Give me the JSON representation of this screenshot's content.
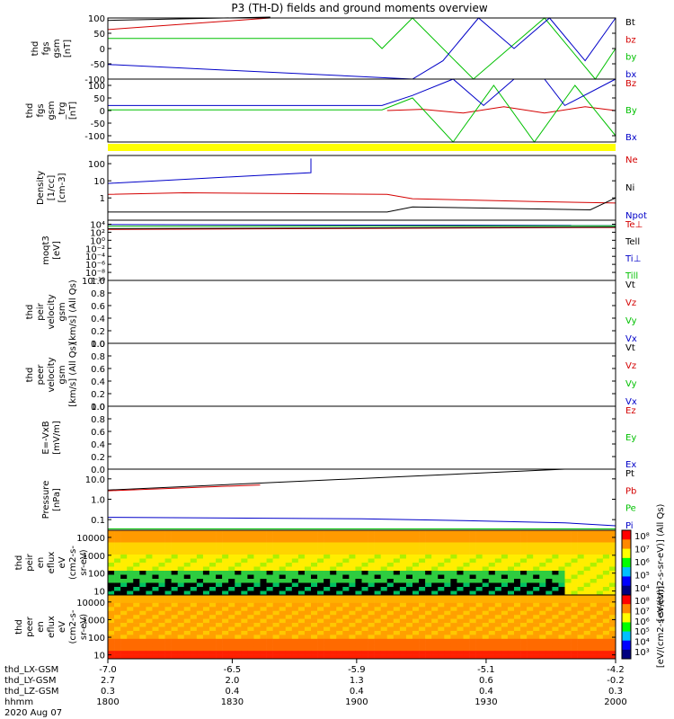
{
  "title": "P3 (TH-D) fields and ground moments overview",
  "footer": {
    "date": "2020 Aug 07",
    "rows": [
      {
        "label": "thd_LX-GSM",
        "values": [
          "-7.0",
          "-6.5",
          "-5.9",
          "-5.1",
          "-4.2"
        ]
      },
      {
        "label": "thd_LY-GSM",
        "values": [
          "2.7",
          "2.0",
          "1.3",
          "0.6",
          "-0.2"
        ]
      },
      {
        "label": "thd_LZ-GSM",
        "values": [
          "0.3",
          "0.4",
          "0.4",
          "0.4",
          "0.3"
        ]
      },
      {
        "label": "hhmm",
        "values": [
          "1800",
          "1830",
          "1900",
          "1930",
          "2000"
        ]
      }
    ]
  },
  "colorbar": {
    "label": "[eV/(cm2-s-sr-eV)] (All Qs)",
    "label_lower": "[eV/(cm2-s-sr-eV)]",
    "ticks_upper": [
      "10⁸",
      "10⁷",
      "10⁶",
      "10⁵",
      "10⁴"
    ],
    "ticks_lower": [
      "10⁸",
      "10⁷",
      "10⁶",
      "10⁵",
      "10⁴",
      "10³"
    ]
  },
  "colors": {
    "black": "#000000",
    "red": "#d40000",
    "green": "#00c000",
    "blue": "#0000c8",
    "yellow": "#ffff00"
  },
  "chart_data": [
    {
      "type": "line",
      "ylabel": [
        "thd",
        "fgs",
        "gsm",
        "[nT]"
      ],
      "ylim": [
        -100,
        100
      ],
      "yticks": [
        "100",
        "50",
        "0",
        "-50",
        "-100"
      ],
      "legend": [
        {
          "name": "Bt",
          "color": "black"
        },
        {
          "name": "bz",
          "color": "red"
        },
        {
          "name": "by",
          "color": "green"
        },
        {
          "name": "bx",
          "color": "blue"
        }
      ],
      "series": [
        {
          "name": "Bt",
          "color": "black",
          "x": [
            0,
            0.32
          ],
          "y": [
            92,
            103
          ]
        },
        {
          "name": "bz",
          "color": "red",
          "x": [
            0,
            0.32
          ],
          "y": [
            62,
            100
          ]
        },
        {
          "name": "by",
          "color": "green",
          "x": [
            0,
            0.52,
            0.54,
            0.6,
            0.72,
            0.86,
            0.96,
            1.0
          ],
          "y": [
            33,
            33,
            0,
            100,
            -100,
            100,
            -100,
            0
          ]
        },
        {
          "name": "bx",
          "color": "blue",
          "x": [
            0,
            0.6,
            0.66,
            0.73,
            0.8,
            0.87,
            0.94,
            1.0
          ],
          "y": [
            -52,
            -100,
            -40,
            100,
            0,
            100,
            -40,
            100
          ]
        }
      ]
    },
    {
      "type": "line",
      "ylabel": [
        "thd",
        "fgs",
        "gsm",
        "_trg",
        "[nT]"
      ],
      "ylim": [
        -125,
        125
      ],
      "yticks": [
        "100",
        "50",
        "0",
        "-50",
        "-100"
      ],
      "legend": [
        {
          "name": "Bz",
          "color": "red"
        },
        {
          "name": "By",
          "color": "green"
        },
        {
          "name": "Bx",
          "color": "blue"
        }
      ],
      "series": [
        {
          "name": "Bz",
          "color": "red",
          "x": [
            0.55,
            0.62,
            0.7,
            0.78,
            0.86,
            0.94,
            1.0
          ],
          "y": [
            0,
            5,
            -10,
            15,
            -10,
            15,
            0
          ]
        },
        {
          "name": "By",
          "color": "green",
          "x": [
            0,
            0.54,
            0.6,
            0.68,
            0.76,
            0.84,
            0.92,
            1.0
          ],
          "y": [
            3,
            3,
            50,
            -125,
            100,
            -125,
            100,
            -100
          ]
        },
        {
          "name": "Bx",
          "color": "blue",
          "x": [
            0,
            0.54,
            0.6,
            0.68,
            0.74,
            0.8,
            0.86,
            0.9,
            1.0
          ],
          "y": [
            20,
            20,
            60,
            125,
            20,
            125,
            125,
            20,
            125
          ]
        }
      ]
    },
    {
      "type": "line",
      "ylabel": [
        "Density",
        "[1/cc]",
        "[cm-3]"
      ],
      "yscale": "log",
      "ylim": [
        0.05,
        300
      ],
      "yticks": [
        "100",
        "10",
        "1"
      ],
      "legend": [
        {
          "name": "Ne",
          "color": "red"
        },
        {
          "name": "Ni",
          "color": "black"
        },
        {
          "name": "Npot",
          "color": "blue"
        }
      ],
      "series": [
        {
          "name": "Ne",
          "color": "red",
          "x": [
            0,
            0.15,
            0.55,
            0.6,
            0.85,
            1.0
          ],
          "y": [
            1.6,
            2.0,
            1.6,
            0.9,
            0.6,
            0.5
          ]
        },
        {
          "name": "Ni",
          "color": "black",
          "x": [
            0,
            0.55,
            0.6,
            0.95,
            1.0
          ],
          "y": [
            0.15,
            0.15,
            0.3,
            0.2,
            1.0
          ]
        },
        {
          "name": "Npot",
          "color": "blue",
          "x": [
            0,
            0.4,
            0.4
          ],
          "y": [
            7,
            30,
            200
          ]
        }
      ]
    },
    {
      "type": "line",
      "ylabel": [
        "moqt3",
        "[eV]"
      ],
      "yscale": "log",
      "ylim": [
        1e-10,
        100000.0
      ],
      "yticks": [
        "10⁴",
        "10²",
        "10⁰",
        "10⁻²",
        "10⁻⁴",
        "10⁻⁶",
        "10⁻⁸",
        "10⁻¹⁰"
      ],
      "legend": [
        {
          "name": "Te⊥",
          "color": "red"
        },
        {
          "name": "Tell",
          "color": "black"
        },
        {
          "name": "Ti⊥",
          "color": "blue"
        },
        {
          "name": "Till",
          "color": "green"
        }
      ],
      "series": [
        {
          "name": "Te⊥",
          "color": "red",
          "x": [
            0,
            1.0
          ],
          "y": [
            500,
            1500
          ]
        },
        {
          "name": "Tell",
          "color": "black",
          "x": [
            0,
            1.0
          ],
          "y": [
            800,
            2000
          ]
        },
        {
          "name": "Ti⊥",
          "color": "blue",
          "x": [
            0,
            1.0
          ],
          "y": [
            8000,
            5000
          ]
        },
        {
          "name": "Till",
          "color": "green",
          "x": [
            0,
            1.0
          ],
          "y": [
            3000,
            4000
          ]
        }
      ]
    },
    {
      "type": "line",
      "ylabel": [
        "thd",
        "peir",
        "velocity",
        "gsm",
        "[km/s] (All Qs)"
      ],
      "ylim": [
        0,
        1
      ],
      "yticks": [
        "1.0",
        "0.8",
        "0.6",
        "0.4",
        "0.2",
        "0.0"
      ],
      "legend": [
        {
          "name": "Vt",
          "color": "black"
        },
        {
          "name": "Vz",
          "color": "red"
        },
        {
          "name": "Vy",
          "color": "green"
        },
        {
          "name": "Vx",
          "color": "blue"
        }
      ],
      "series": []
    },
    {
      "type": "line",
      "ylabel": [
        "thd",
        "peer",
        "velocity",
        "gsm",
        "[km/s] (All Qs)"
      ],
      "ylim": [
        0,
        1
      ],
      "yticks": [
        "1.0",
        "0.8",
        "0.6",
        "0.4",
        "0.2",
        "0.0"
      ],
      "legend": [
        {
          "name": "Vt",
          "color": "black"
        },
        {
          "name": "Vz",
          "color": "red"
        },
        {
          "name": "Vy",
          "color": "green"
        },
        {
          "name": "Vx",
          "color": "blue"
        }
      ],
      "series": []
    },
    {
      "type": "line",
      "ylabel": [
        "E=-VxB",
        "[mV/m]"
      ],
      "ylim": [
        0,
        1
      ],
      "yticks": [
        "1.0",
        "0.8",
        "0.6",
        "0.4",
        "0.2",
        "0.0"
      ],
      "legend": [
        {
          "name": "Ez",
          "color": "red"
        },
        {
          "name": "Ey",
          "color": "green"
        },
        {
          "name": "Ex",
          "color": "blue"
        }
      ],
      "series": []
    },
    {
      "type": "line",
      "ylabel": [
        "Pressure",
        "[nPa]"
      ],
      "yscale": "log",
      "ylim": [
        0.03,
        30
      ],
      "yticks": [
        "10.0",
        "1.0",
        "0.1"
      ],
      "legend": [
        {
          "name": "Pt",
          "color": "black"
        },
        {
          "name": "Pb",
          "color": "red"
        },
        {
          "name": "Pe",
          "color": "green"
        },
        {
          "name": "Pi",
          "color": "blue"
        }
      ],
      "series": [
        {
          "name": "Pt",
          "color": "black",
          "x": [
            0,
            0.9
          ],
          "y": [
            2.8,
            30
          ]
        },
        {
          "name": "Pb",
          "color": "red",
          "x": [
            0,
            0.3
          ],
          "y": [
            2.6,
            5
          ]
        },
        {
          "name": "Pe",
          "color": "green",
          "x": [
            0,
            1.0
          ],
          "y": [
            0.035,
            0.035
          ]
        },
        {
          "name": "Pi",
          "color": "blue",
          "x": [
            0,
            0.5,
            0.7,
            0.9,
            1.0
          ],
          "y": [
            0.13,
            0.11,
            0.09,
            0.07,
            0.05
          ]
        }
      ]
    },
    {
      "type": "heatmap",
      "ylabel": [
        "thd",
        "peir",
        "en",
        "eflux",
        "eV",
        "(cm2-s-",
        "sr-eV)"
      ],
      "yscale": "log",
      "ylim": [
        6,
        25000
      ],
      "yticks": [
        "10000",
        "1000",
        "100",
        "10"
      ]
    },
    {
      "type": "heatmap",
      "ylabel": [
        "thd",
        "peer",
        "en",
        "eflux",
        "eV",
        "(cm2-s-",
        "sr-eV)"
      ],
      "yscale": "log",
      "ylim": [
        6,
        25000
      ],
      "yticks": [
        "10000",
        "1000",
        "100",
        "10"
      ]
    }
  ]
}
